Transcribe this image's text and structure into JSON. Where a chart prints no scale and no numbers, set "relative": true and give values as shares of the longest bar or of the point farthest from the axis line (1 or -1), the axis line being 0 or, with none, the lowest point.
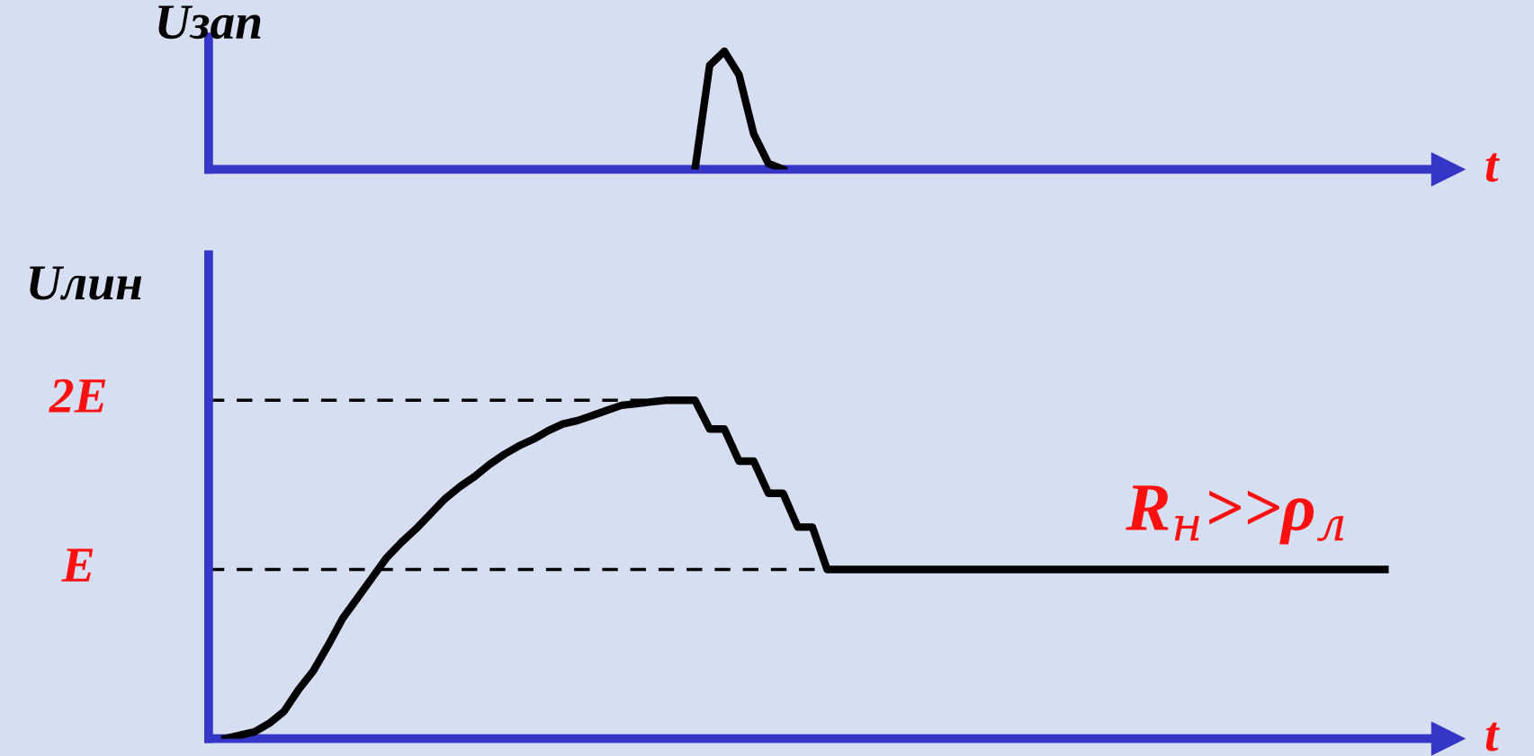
{
  "chart_data": [
    {
      "type": "line",
      "ylabel": "Uзап",
      "xlabel": "t",
      "relative": true,
      "grid": false,
      "categories": [
        null,
        null,
        null,
        null,
        null,
        null,
        null,
        null,
        null,
        null,
        null,
        null,
        null,
        null,
        null,
        null,
        null,
        null,
        null,
        null,
        null,
        null,
        null,
        null,
        null,
        null,
        null,
        null,
        null,
        null,
        null,
        null,
        null,
        null,
        null,
        null,
        null,
        null,
        null,
        null,
        null,
        null,
        null,
        null,
        null,
        null,
        null,
        null,
        null,
        null,
        null,
        null,
        null,
        null,
        null,
        null,
        null,
        null,
        null,
        null,
        null,
        null,
        null,
        null,
        null,
        null,
        null,
        null,
        null,
        null,
        null,
        null,
        null,
        null,
        null,
        null,
        null,
        null,
        null,
        null
      ],
      "series": [
        {
          "color": "#000000",
          "values": [
            null,
            null,
            null,
            null,
            null,
            null,
            null,
            null,
            null,
            null,
            null,
            null,
            null,
            null,
            null,
            null,
            null,
            null,
            null,
            null,
            null,
            null,
            null,
            null,
            null,
            null,
            null,
            null,
            null,
            null,
            null,
            null,
            0,
            0.88,
            1.0,
            0.8,
            0.3,
            0.05,
            0,
            null,
            null,
            null,
            null,
            null,
            null,
            null,
            null,
            null,
            null,
            null,
            null,
            null,
            null,
            null,
            null,
            null,
            null,
            null,
            null,
            null,
            null,
            null,
            null,
            null,
            null,
            null,
            null,
            null,
            null,
            null,
            null,
            null,
            null,
            null,
            null,
            null,
            null,
            null,
            null,
            null
          ]
        }
      ]
    },
    {
      "type": "line",
      "ylabel": "Uлин",
      "xlabel": "t",
      "grid": false,
      "categories": [
        null,
        null,
        null,
        null,
        null,
        null,
        null,
        null,
        null,
        null,
        null,
        null,
        null,
        null,
        null,
        null,
        null,
        null,
        null,
        null,
        null,
        null,
        null,
        null,
        null,
        null,
        null,
        null,
        null,
        null,
        null,
        null,
        null,
        null,
        null,
        null,
        null,
        null,
        null,
        null,
        null,
        null,
        null,
        null,
        null,
        null,
        null,
        null,
        null,
        null,
        null,
        null,
        null,
        null,
        null,
        null,
        null,
        null,
        null,
        null,
        null,
        null,
        null,
        null,
        null,
        null,
        null,
        null,
        null,
        null,
        null,
        null,
        null,
        null,
        null,
        null,
        null,
        null,
        null,
        null
      ],
      "relative": true,
      "series": [
        {
          "color": "#000000",
          "values": [
            0,
            0.01,
            0.02,
            0.045,
            0.08,
            0.145,
            0.2,
            0.275,
            0.355,
            0.415,
            0.475,
            0.535,
            0.58,
            0.62,
            0.665,
            0.71,
            0.745,
            0.775,
            0.81,
            0.84,
            0.865,
            0.885,
            0.91,
            0.93,
            0.94,
            0.955,
            0.97,
            0.985,
            0.99,
            0.995,
            1,
            1,
            1,
            0.915,
            0.915,
            0.82,
            0.82,
            0.725,
            0.725,
            0.625,
            0.625,
            0.5,
            0.5,
            0.5,
            0.5,
            0.5,
            0.5,
            0.5,
            0.5,
            0.5,
            0.5,
            0.5,
            0.5,
            0.5,
            0.5,
            0.5,
            0.5,
            0.5,
            0.5,
            0.5,
            0.5,
            0.5,
            0.5,
            0.5,
            0.5,
            0.5,
            0.5,
            0.5,
            0.5,
            0.5,
            0.5,
            0.5,
            0.5,
            0.5,
            0.5,
            0.5,
            0.5,
            0.5,
            0.5,
            0.5
          ]
        }
      ],
      "ref_lines": [
        {
          "axis": "y",
          "value": 1,
          "label": "2E",
          "color": "#000000",
          "line_style": "dashed"
        },
        {
          "axis": "y",
          "value": 0.5,
          "label": "E",
          "color": "#000000",
          "line_style": "dashed"
        }
      ],
      "annotations": [
        "R$_{н}$>>ρ$_{л}$"
      ]
    }
  ]
}
